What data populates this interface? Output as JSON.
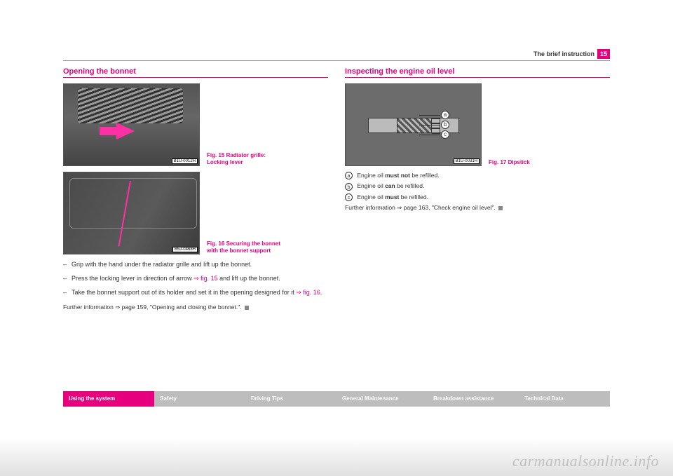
{
  "header": {
    "section_title": "The brief instruction",
    "page_number": "15"
  },
  "left": {
    "title": "Opening the bonnet",
    "fig15_badge": "B1U-0012H",
    "fig15_caption_a": "Fig. 15   Radiator grille:",
    "fig15_caption_b": "Locking lever",
    "fig16_badge": "B5J-0468H",
    "fig16_caption_a": "Fig. 16   Securing the bonnet",
    "fig16_caption_b": "with the bonnet support",
    "steps": [
      {
        "text": "Grip with the hand under the radiator grille and lift up the bonnet."
      },
      {
        "pre": "Press the locking lever in direction of arrow ",
        "ref": "⇒ fig. 15",
        "post": " and lift up the bonnet."
      },
      {
        "pre": "Take the bonnet support out of its holder and set it in the opening designed for it ",
        "ref": "⇒ fig. 16",
        "post": "."
      }
    ],
    "further": "Further information ⇒ page 159, \"Opening and closing the bonnet.\"."
  },
  "right": {
    "title": "Inspecting the engine oil level",
    "fig17_badge": "B1U-0031H",
    "fig17_caption": "Fig. 17   Dipstick",
    "labels": {
      "a": "a",
      "b": "b",
      "c": "c"
    },
    "line_a": {
      "pre": "Engine oil ",
      "strong": "must not",
      "post": " be refilled."
    },
    "line_b": {
      "pre": "Engine oil ",
      "strong": "can",
      "post": " be refilled."
    },
    "line_c": {
      "pre": "Engine oil ",
      "strong": "must",
      "post": " be refilled."
    },
    "further": "Further information ⇒ page 163, \"Check engine oil level\"."
  },
  "footer": {
    "items": [
      "Using the system",
      "Safety",
      "Driving Tips",
      "General Maintenance",
      "Breakdown assistance",
      "Technical Data"
    ]
  },
  "watermark": "carmanualsonline.info",
  "colors": {
    "accent": "#e6007e",
    "grey": "#bdbdbd",
    "text": "#333333",
    "bg": "#ffffff"
  }
}
